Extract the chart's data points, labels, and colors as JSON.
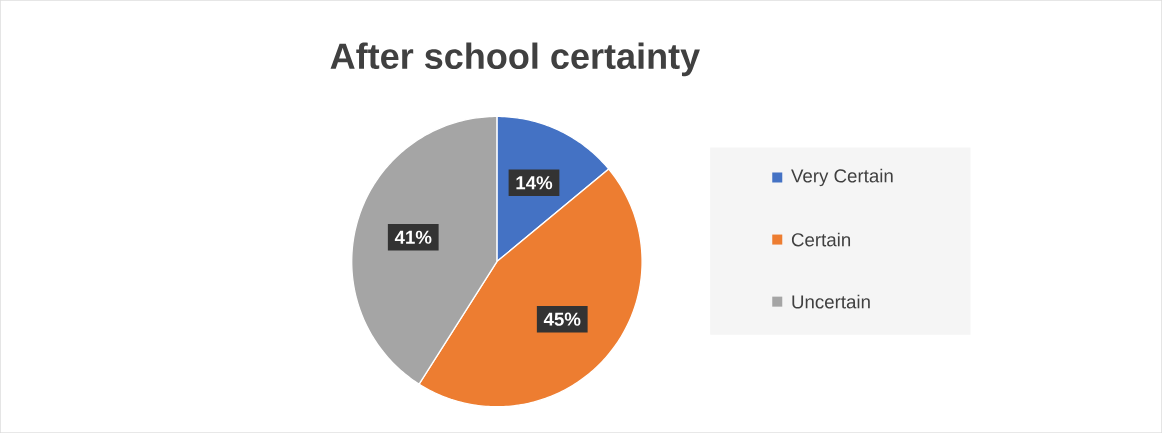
{
  "chart_data": {
    "type": "pie",
    "title": "After school certainty",
    "categories": [
      "Very Certain",
      "Certain",
      "Uncertain"
    ],
    "values": [
      14,
      45,
      41
    ],
    "value_labels": [
      "14%",
      "45%",
      "41%"
    ],
    "colors": [
      "#4472c4",
      "#ed7d31",
      "#a5a5a5"
    ],
    "legend": "right"
  }
}
